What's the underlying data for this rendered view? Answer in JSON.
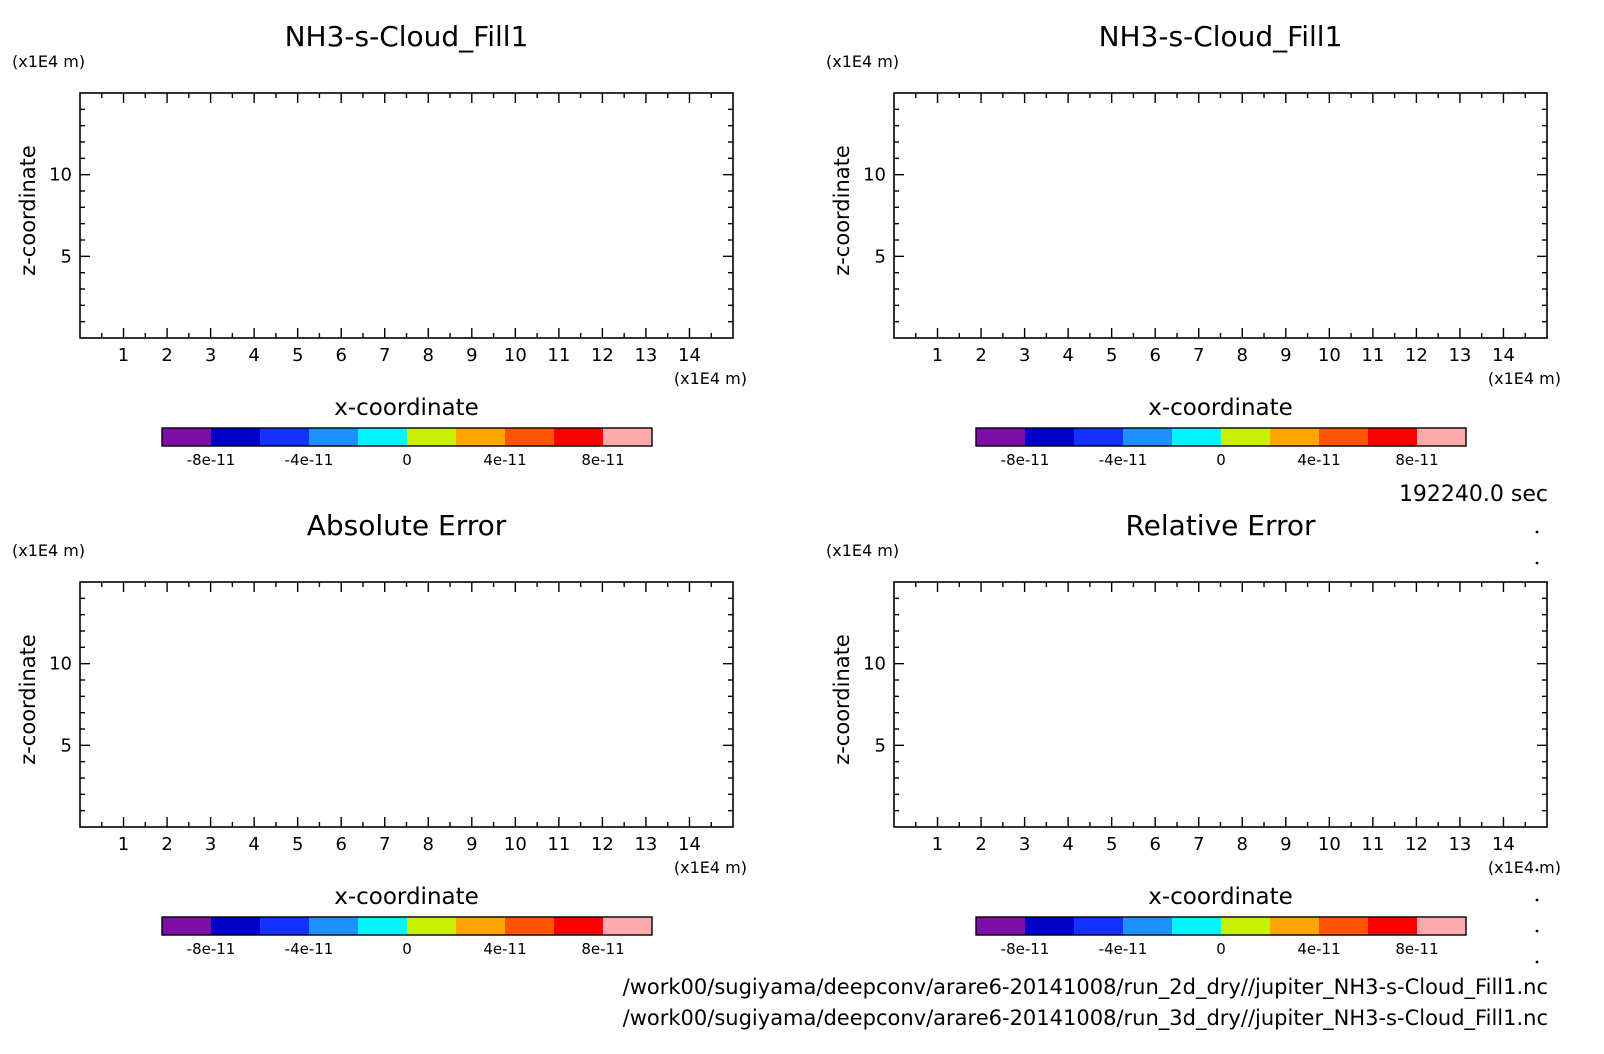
{
  "chart_data": [
    {
      "type": "heatmap",
      "title": "NH3-s-Cloud_Fill1",
      "xlabel": "x-coordinate",
      "ylabel": "z-coordinate",
      "x_unit": "(x1E4 m)",
      "y_unit": "(x1E4 m)",
      "xlim": [
        0,
        15
      ],
      "ylim": [
        0,
        15
      ],
      "x_ticks": [
        "1",
        "2",
        "3",
        "4",
        "5",
        "6",
        "7",
        "8",
        "9",
        "10",
        "11",
        "12",
        "13",
        "14"
      ],
      "y_ticks": [
        "5",
        "10"
      ],
      "values": [],
      "colorbar": {
        "range": [
          -1e-10,
          1e-10
        ],
        "tick_labels": [
          "-8e-11",
          "-4e-11",
          "0",
          "4e-11",
          "8e-11"
        ],
        "colors": [
          "#7d0fa8",
          "#0000c8",
          "#1432ff",
          "#1e90ff",
          "#00f5ff",
          "#c8f000",
          "#ffa500",
          "#ff5500",
          "#ff0000",
          "#ffaaaa"
        ]
      }
    },
    {
      "type": "heatmap",
      "title": "NH3-s-Cloud_Fill1",
      "xlabel": "x-coordinate",
      "ylabel": "z-coordinate",
      "x_unit": "(x1E4 m)",
      "y_unit": "(x1E4 m)",
      "xlim": [
        0,
        15
      ],
      "ylim": [
        0,
        15
      ],
      "x_ticks": [
        "1",
        "2",
        "3",
        "4",
        "5",
        "6",
        "7",
        "8",
        "9",
        "10",
        "11",
        "12",
        "13",
        "14"
      ],
      "y_ticks": [
        "5",
        "10"
      ],
      "values": [],
      "colorbar": {
        "range": [
          -1e-10,
          1e-10
        ],
        "tick_labels": [
          "-8e-11",
          "-4e-11",
          "0",
          "4e-11",
          "8e-11"
        ],
        "colors": [
          "#7d0fa8",
          "#0000c8",
          "#1432ff",
          "#1e90ff",
          "#00f5ff",
          "#c8f000",
          "#ffa500",
          "#ff5500",
          "#ff0000",
          "#ffaaaa"
        ]
      }
    },
    {
      "type": "heatmap",
      "title": "Absolute Error",
      "xlabel": "x-coordinate",
      "ylabel": "z-coordinate",
      "x_unit": "(x1E4 m)",
      "y_unit": "(x1E4 m)",
      "xlim": [
        0,
        15
      ],
      "ylim": [
        0,
        15
      ],
      "x_ticks": [
        "1",
        "2",
        "3",
        "4",
        "5",
        "6",
        "7",
        "8",
        "9",
        "10",
        "11",
        "12",
        "13",
        "14"
      ],
      "y_ticks": [
        "5",
        "10"
      ],
      "values": [],
      "colorbar": {
        "range": [
          -1e-10,
          1e-10
        ],
        "tick_labels": [
          "-8e-11",
          "-4e-11",
          "0",
          "4e-11",
          "8e-11"
        ],
        "colors": [
          "#7d0fa8",
          "#0000c8",
          "#1432ff",
          "#1e90ff",
          "#00f5ff",
          "#c8f000",
          "#ffa500",
          "#ff5500",
          "#ff0000",
          "#ffaaaa"
        ]
      }
    },
    {
      "type": "heatmap",
      "title": "Relative Error",
      "xlabel": "x-coordinate",
      "ylabel": "z-coordinate",
      "x_unit": "(x1E4 m)",
      "y_unit": "(x1E4 m)",
      "xlim": [
        0,
        15
      ],
      "ylim": [
        0,
        15
      ],
      "x_ticks": [
        "1",
        "2",
        "3",
        "4",
        "5",
        "6",
        "7",
        "8",
        "9",
        "10",
        "11",
        "12",
        "13",
        "14"
      ],
      "y_ticks": [
        "5",
        "10"
      ],
      "values": [],
      "colorbar": {
        "range": [
          -1e-10,
          1e-10
        ],
        "tick_labels": [
          "-8e-11",
          "-4e-11",
          "0",
          "4e-11",
          "8e-11"
        ],
        "colors": [
          "#7d0fa8",
          "#0000c8",
          "#1432ff",
          "#1e90ff",
          "#00f5ff",
          "#c8f000",
          "#ffa500",
          "#ff5500",
          "#ff0000",
          "#ffaaaa"
        ]
      }
    }
  ],
  "time_label": "192240.0 sec",
  "file_paths": [
    "/work00/sugiyama/deepconv/arare6-20141008/run_2d_dry//jupiter_NH3-s-Cloud_Fill1.nc",
    "/work00/sugiyama/deepconv/arare6-20141008/run_3d_dry//jupiter_NH3-s-Cloud_Fill1.nc"
  ]
}
